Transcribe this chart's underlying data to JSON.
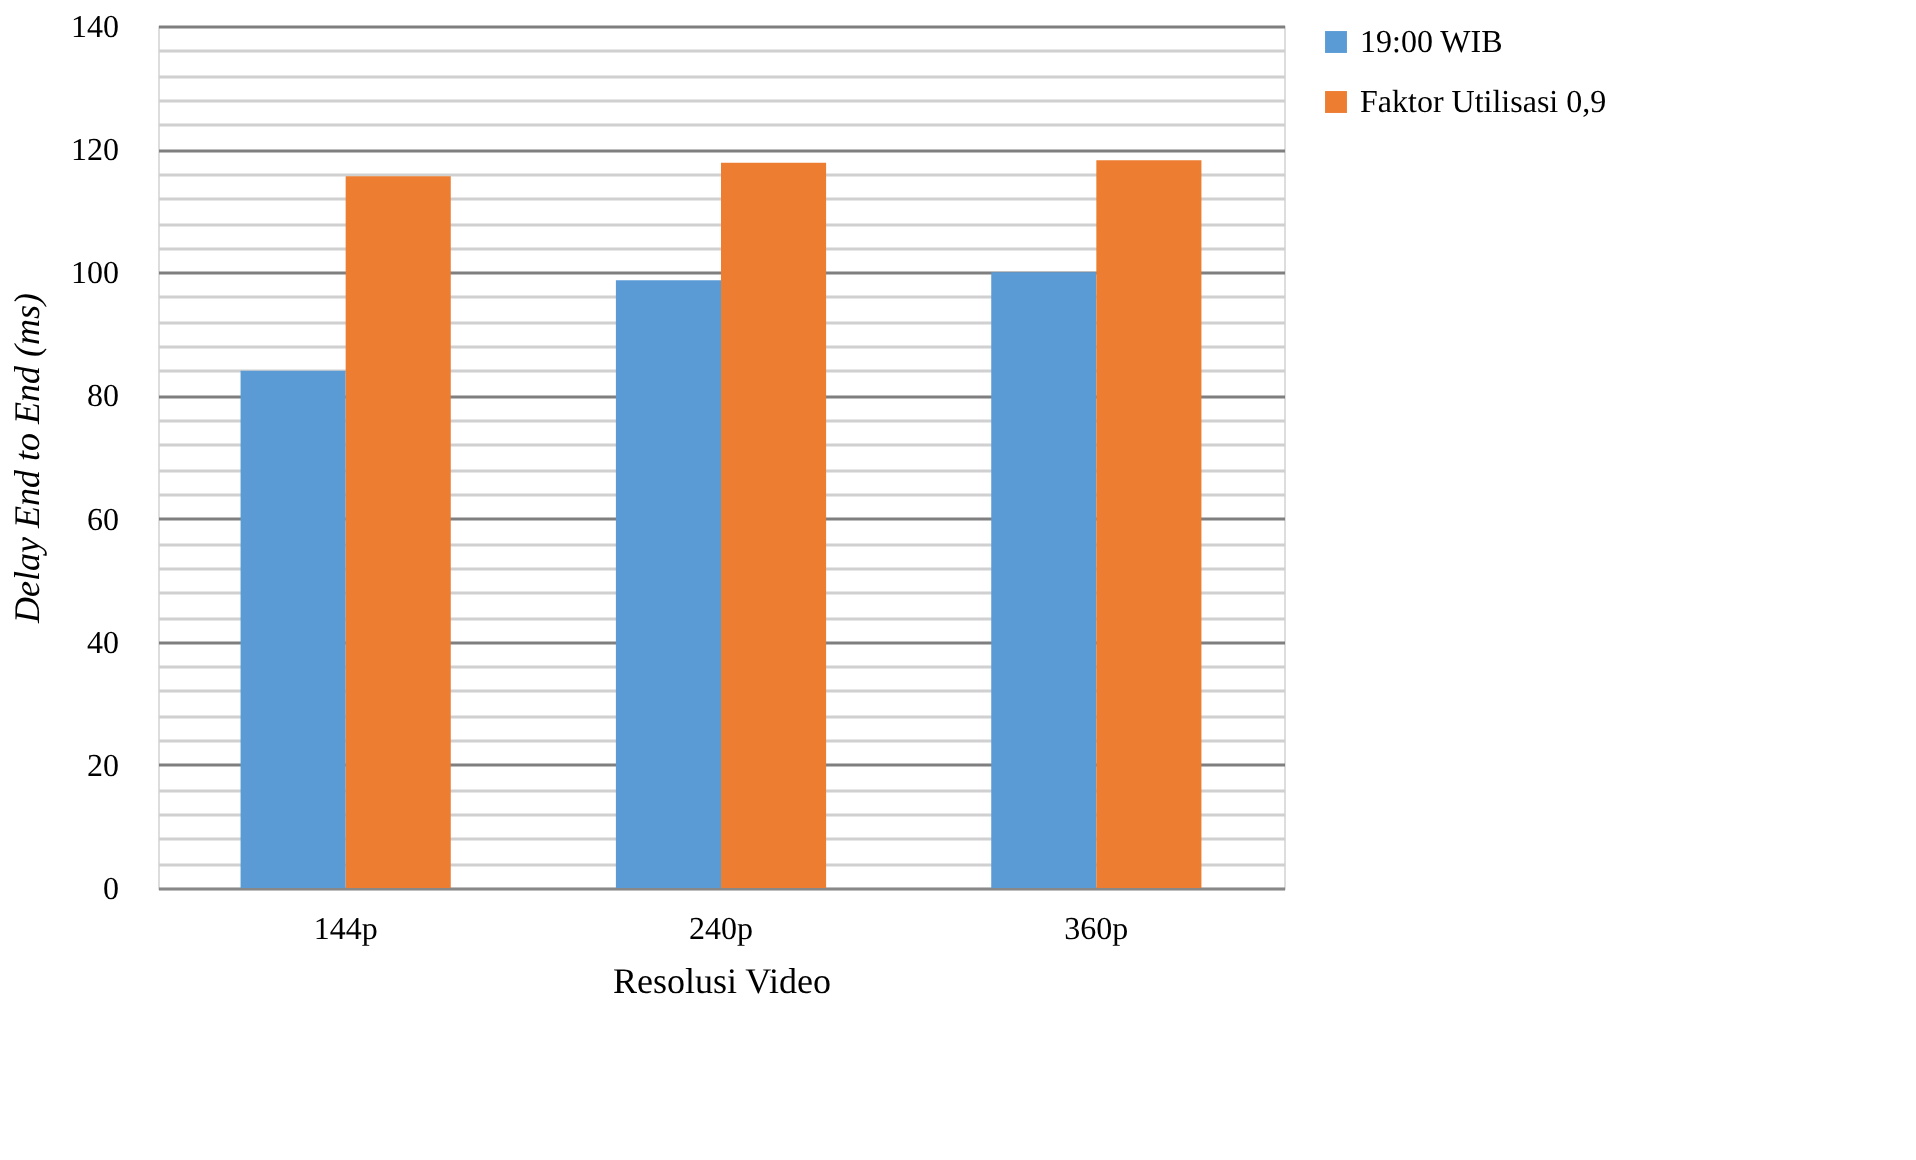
{
  "chart_data": {
    "type": "bar",
    "xlabel": "Resolusi Video",
    "ylabel": "Delay End to End (ms)",
    "categories": [
      "144p",
      "240p",
      "360p"
    ],
    "series": [
      {
        "name": "19:00 WIB",
        "color": "#5b9bd5",
        "values": [
          84.0,
          98.7,
          100.0
        ]
      },
      {
        "name": "Faktor Utilisasi 0,9",
        "color": "#ed7d31",
        "values": [
          115.6,
          117.8,
          118.2
        ]
      }
    ],
    "ylim": [
      0,
      140
    ],
    "yticks": [
      0,
      {
        "value": 4,
        "label": null
      },
      {
        "value": 8,
        "label": null
      },
      {
        "value": 12,
        "label": null
      },
      {
        "value": 16,
        "label": null
      },
      20,
      {
        "value": 24,
        "label": null
      },
      {
        "value": 28,
        "label": null
      },
      {
        "value": 32,
        "label": null
      },
      {
        "value": 36,
        "label": null
      },
      40,
      {
        "value": 44,
        "label": null
      },
      {
        "value": 48,
        "label": null
      },
      {
        "value": 52,
        "label": null
      },
      {
        "value": 56,
        "label": null
      },
      60,
      {
        "value": 64,
        "label": null
      },
      {
        "value": 68,
        "label": null
      },
      {
        "value": 72,
        "label": null
      },
      {
        "value": 76,
        "label": null
      },
      80,
      {
        "value": 84,
        "label": null
      },
      {
        "value": 88,
        "label": null
      },
      {
        "value": 92,
        "label": null
      },
      {
        "value": 96,
        "label": null
      },
      100,
      {
        "value": 104,
        "label": null
      },
      {
        "value": 108,
        "label": null
      },
      {
        "value": 112,
        "label": null
      },
      {
        "value": 116,
        "label": null
      },
      120,
      {
        "value": 124,
        "label": null
      },
      {
        "value": 128,
        "label": null
      },
      {
        "value": 132,
        "label": null
      },
      {
        "value": 136,
        "label": null
      },
      140
    ],
    "grid": "y",
    "legend": "right"
  }
}
